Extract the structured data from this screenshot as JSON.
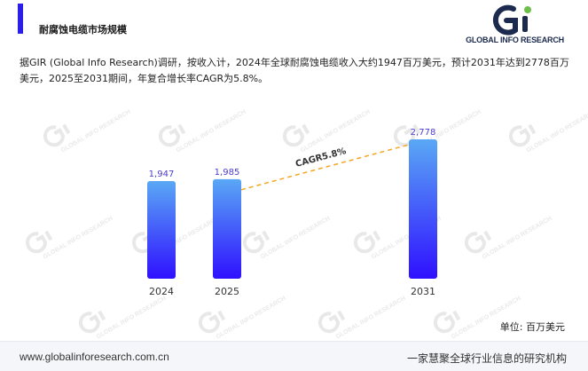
{
  "header": {
    "title": "耐腐蚀电缆市场规模",
    "accent_color": "#2b1ee8"
  },
  "logo": {
    "text": "GLOBAL INFO RESEARCH",
    "colors": [
      "#1b2a4e",
      "#6cc04a"
    ]
  },
  "description": "据GIR (Global Info Research)调研，按收入计，2024年全球耐腐蚀电缆收入大约1947百万美元，预计2031年达到2778百万美元，2025至2031期间，年复合增长率CAGR为5.8%。",
  "watermark_text": "GLOBAL INFO RESEARCH",
  "unit_label": "单位: 百万美元",
  "footer": {
    "website": "www.globalinforesearch.com.cn",
    "slogan": "一家慧聚全球行业信息的研究机构"
  },
  "chart_data": {
    "type": "bar",
    "categories": [
      "2024",
      "2025",
      "2031"
    ],
    "values": [
      1947,
      1985,
      2778
    ],
    "value_labels": [
      "1,947",
      "1,985",
      "2,778"
    ],
    "ylim": [
      0,
      2778
    ],
    "grid": false,
    "annotation": {
      "text": "CAGR5.8%",
      "from": "2025",
      "to": "2031",
      "style": "dashed",
      "color": "#f5a623"
    },
    "bar_gradient": [
      "#5aa8f5",
      "#2f10ff"
    ],
    "label_color": "#4a3ccf"
  }
}
